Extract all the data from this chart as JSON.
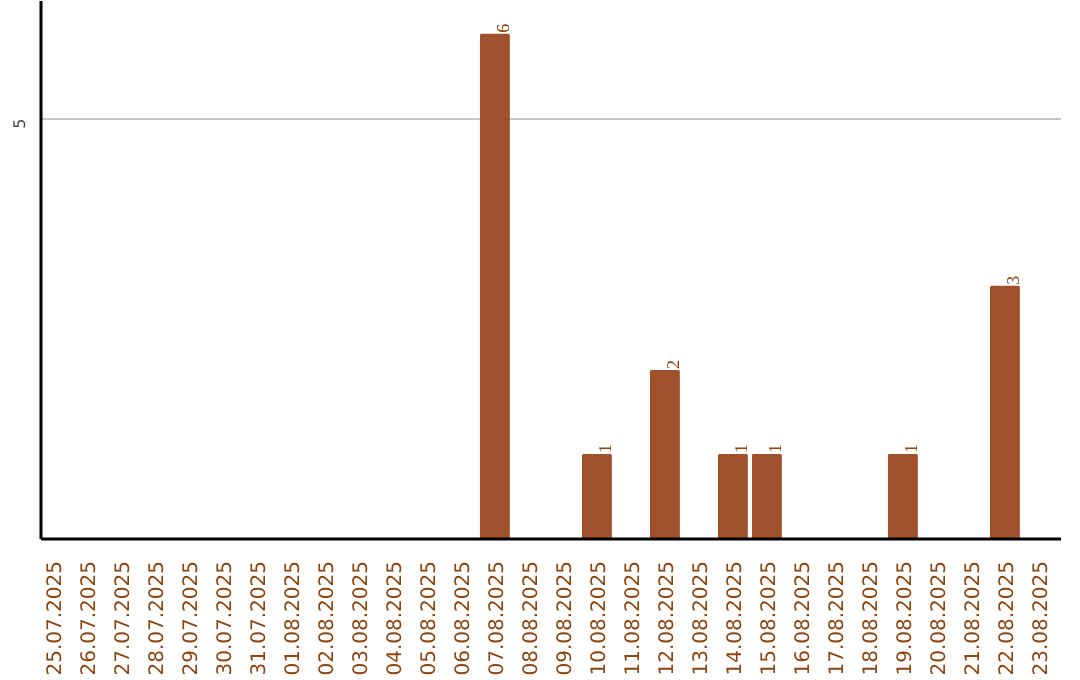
{
  "chart_data": {
    "type": "bar",
    "categories": [
      "25.07.2025",
      "26.07.2025",
      "27.07.2025",
      "28.07.2025",
      "29.07.2025",
      "30.07.2025",
      "31.07.2025",
      "01.08.2025",
      "02.08.2025",
      "03.08.2025",
      "04.08.2025",
      "05.08.2025",
      "06.08.2025",
      "07.08.2025",
      "08.08.2025",
      "09.08.2025",
      "10.08.2025",
      "11.08.2025",
      "12.08.2025",
      "13.08.2025",
      "14.08.2025",
      "15.08.2025",
      "16.08.2025",
      "17.08.2025",
      "18.08.2025",
      "19.08.2025",
      "20.08.2025",
      "21.08.2025",
      "22.08.2025",
      "23.08.2025"
    ],
    "values": [
      null,
      null,
      null,
      null,
      null,
      null,
      null,
      null,
      null,
      null,
      null,
      null,
      null,
      6,
      null,
      null,
      1,
      null,
      2,
      null,
      1,
      1,
      null,
      null,
      null,
      1,
      null,
      null,
      3,
      null
    ],
    "color": "#a0522d",
    "ylim": [
      0,
      6.4
    ],
    "yticks": [
      5
    ],
    "grid": "y",
    "data_labels": true
  }
}
